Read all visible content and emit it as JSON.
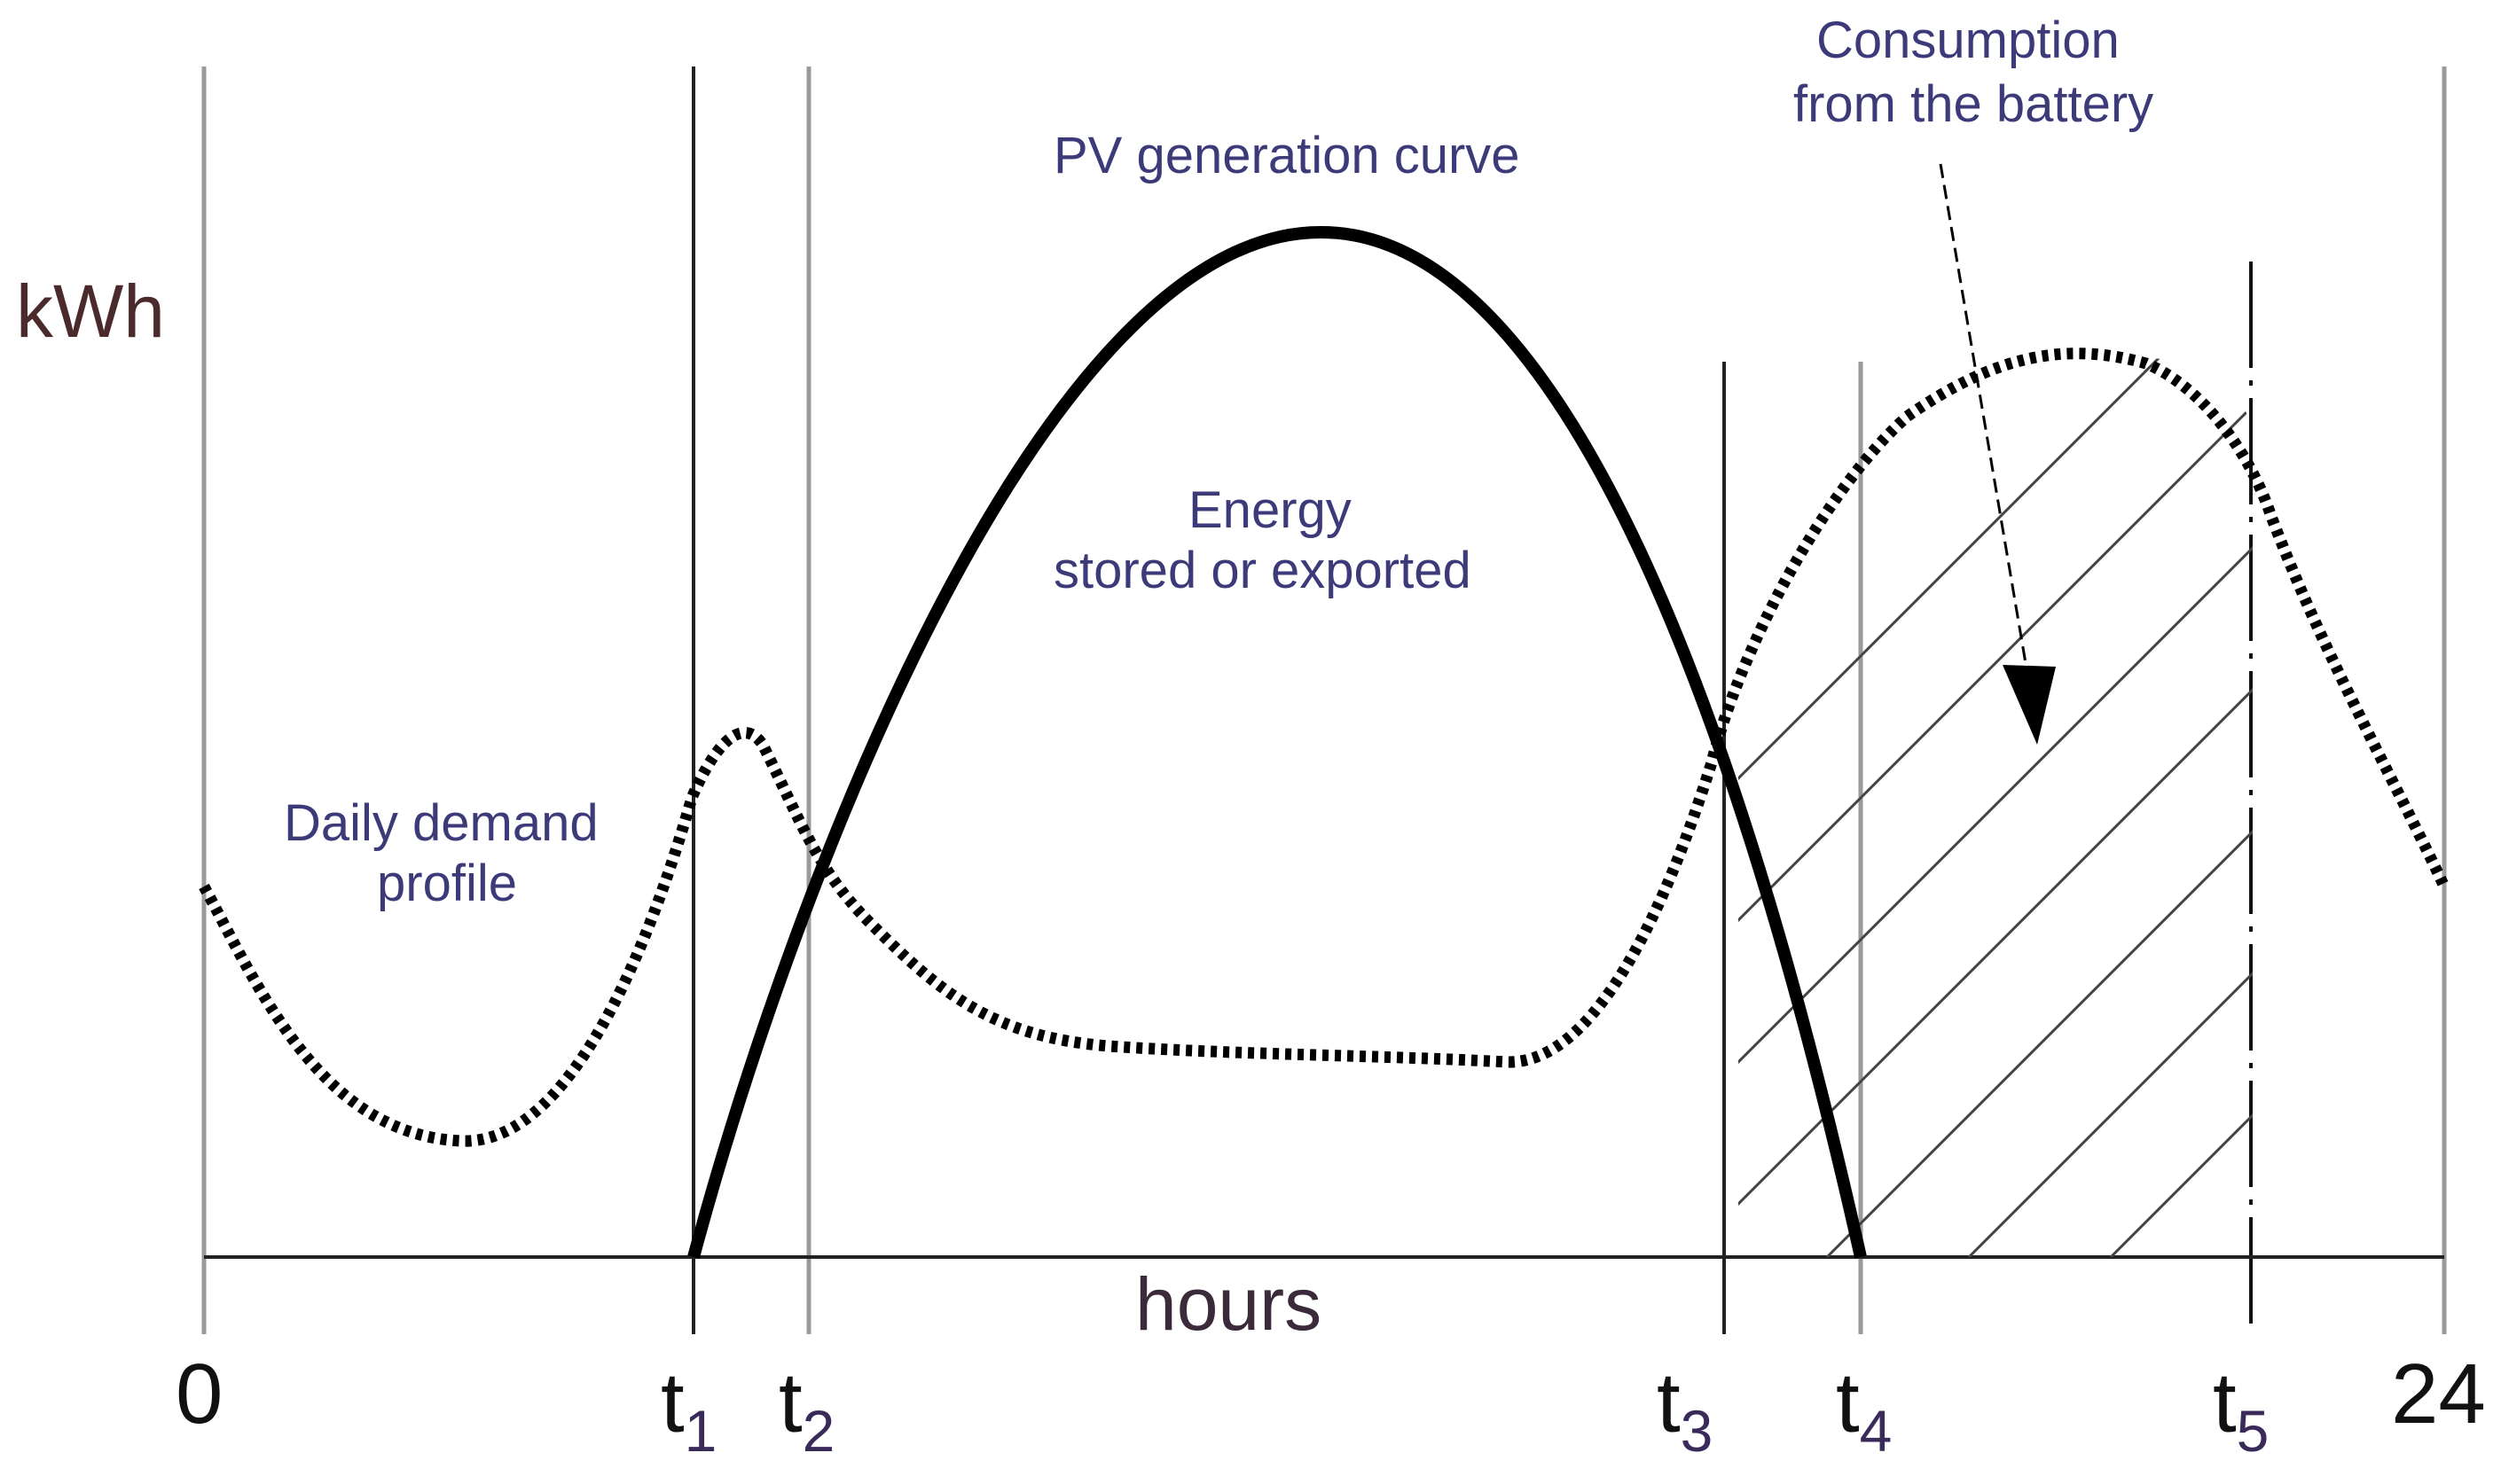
{
  "colors": {
    "axis": "#222222",
    "grid_gray": "#9a9a9a",
    "curve": "#000000",
    "label_blue": "#3c3a78",
    "label_dark": "#3a2a3a",
    "kwh": "#4a2a2a",
    "hatch": "#444444"
  },
  "diagram": {
    "y_axis_label": "kWh",
    "x_axis_label": "hours",
    "x_start": "0",
    "x_end": "24",
    "time_markers": [
      {
        "id": "t1",
        "base": "t",
        "sub": "1"
      },
      {
        "id": "t2",
        "base": "t",
        "sub": "2"
      },
      {
        "id": "t3",
        "base": "t",
        "sub": "3"
      },
      {
        "id": "t4",
        "base": "t",
        "sub": "4"
      },
      {
        "id": "t5",
        "base": "t",
        "sub": "5"
      }
    ],
    "pv_label": "PV generation curve",
    "demand_label_line1": "Daily demand",
    "demand_label_line2": "profile",
    "energy_label_line1": "Energy",
    "energy_label_line2": "stored or exported",
    "battery_label_line1": "Consumption",
    "battery_label_line2": "from the battery"
  }
}
